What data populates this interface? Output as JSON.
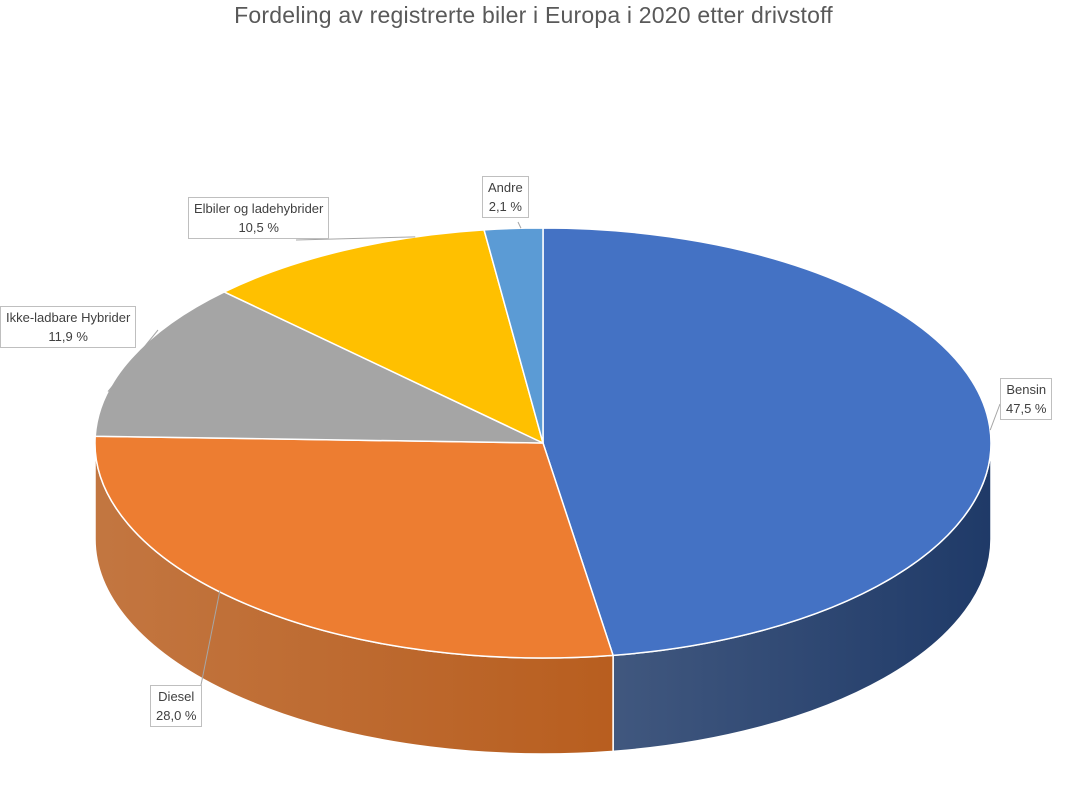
{
  "chart_data": {
    "type": "pie",
    "title": "Fordeling av registrerte biler i Europa i 2020 etter drivstoff",
    "slices": [
      {
        "name": "Bensin",
        "value": 47.5,
        "label": "47,5 %",
        "color": "#4472C4",
        "side_color": "#1F3A68"
      },
      {
        "name": "Diesel",
        "value": 28.0,
        "label": "28,0 %",
        "color": "#ED7D31",
        "side_color": "#B85E1F"
      },
      {
        "name": "Ikke-ladbare Hybrider",
        "value": 11.9,
        "label": "11,9 %",
        "color": "#A5A5A5",
        "side_color": "#7A7A7A"
      },
      {
        "name": "Elbiler og ladehybrider",
        "value": 10.5,
        "label": "10,5 %",
        "color": "#FFC000",
        "side_color": "#C79400"
      },
      {
        "name": "Andre",
        "value": 2.1,
        "label": "2,1 %",
        "color": "#5B9BD5",
        "side_color": "#3A6FA0"
      }
    ],
    "legend": "none",
    "style": "3d-pie"
  }
}
